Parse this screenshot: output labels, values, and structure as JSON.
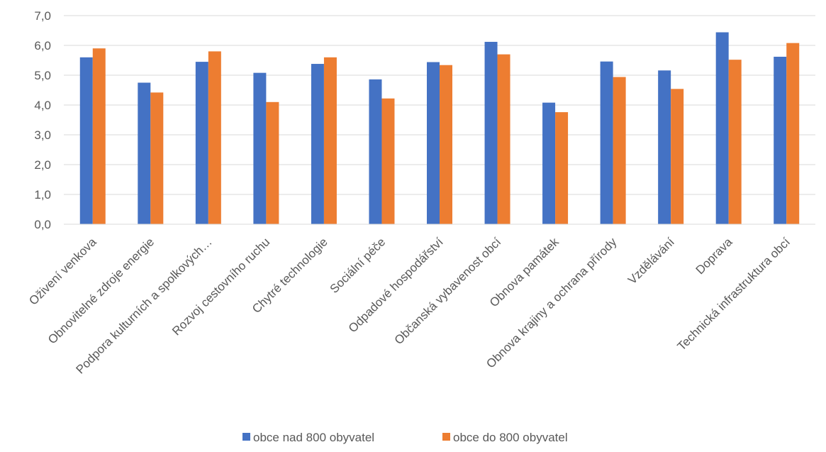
{
  "chart_data": {
    "type": "bar",
    "title": "",
    "xlabel": "",
    "ylabel": "",
    "ylim": [
      0,
      7
    ],
    "y_ticks": [
      "0,0",
      "1,0",
      "2,0",
      "3,0",
      "4,0",
      "5,0",
      "6,0",
      "7,0"
    ],
    "grid": true,
    "legend_position": "bottom",
    "categories": [
      "Oživení venkova",
      "Obnovitelné zdroje energie",
      "Podpora kulturních a spolkových…",
      "Rozvoj cestovního ruchu",
      "Chytré technologie",
      "Sociální péče",
      "Odpadové hospodářství",
      "Občanská vybavenost obcí",
      "Obnova památek",
      "Obnova krajiny a ochrana přírody",
      "Vzdělávání",
      "Doprava",
      "Technická infrastruktura obcí"
    ],
    "series": [
      {
        "name": "obce nad 800 obyvatel",
        "color": "#4472c4",
        "values": [
          5.6,
          4.75,
          5.45,
          5.08,
          5.38,
          4.86,
          5.44,
          6.12,
          4.08,
          5.46,
          5.16,
          6.44,
          5.62
        ]
      },
      {
        "name": "obce do 800 obyvatel",
        "color": "#ed7d31",
        "values": [
          5.9,
          4.42,
          5.8,
          4.1,
          5.6,
          4.22,
          5.34,
          5.7,
          3.76,
          4.94,
          4.54,
          5.52,
          6.08
        ]
      }
    ]
  }
}
